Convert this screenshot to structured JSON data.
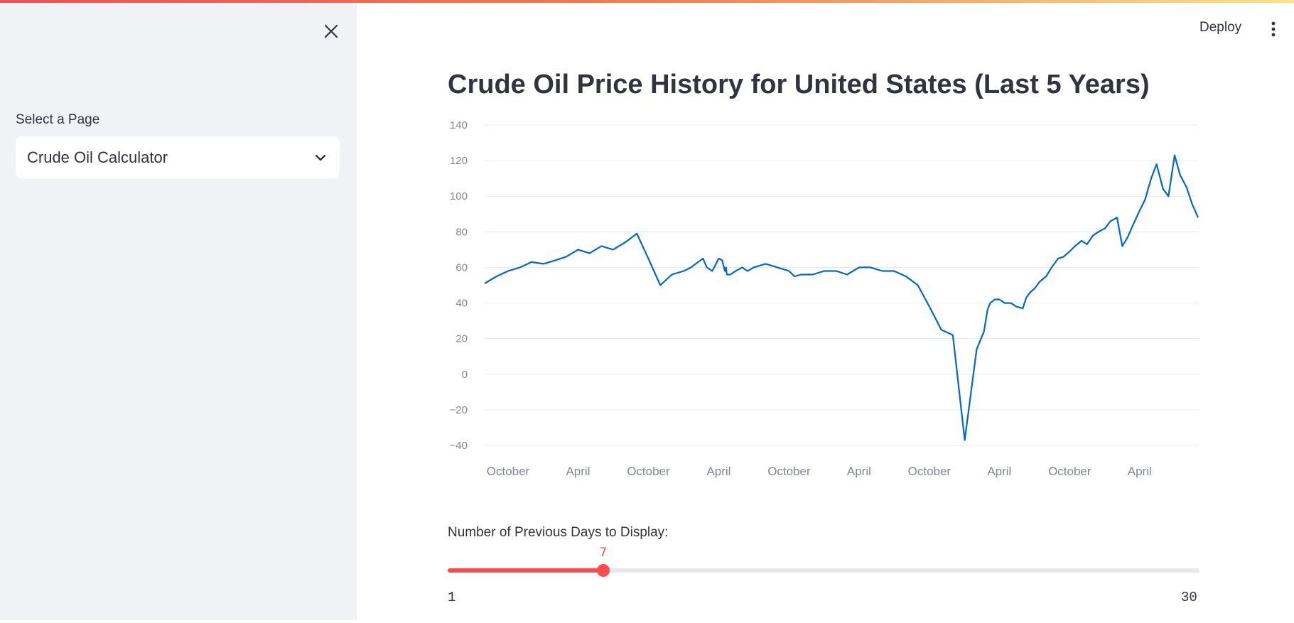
{
  "sidebar": {
    "select_label": "Select a Page",
    "selected_page": "Crude Oil Calculator"
  },
  "header": {
    "deploy_label": "Deploy"
  },
  "main": {
    "title": "Crude Oil Price History for United States (Last 5 Years)"
  },
  "slider": {
    "label": "Number of Previous Days to Display:",
    "min": 1,
    "max": 30,
    "value": 7,
    "min_label": "1",
    "max_label": "30",
    "value_label": "7",
    "accent": "#ff4b4b"
  },
  "chart_data": {
    "type": "line",
    "title": "",
    "xlabel": "",
    "ylabel": "",
    "ylim": [
      -40,
      140
    ],
    "yticks": [
      140,
      120,
      100,
      80,
      60,
      40,
      20,
      0,
      -20,
      -40
    ],
    "ytick_labels": [
      "140",
      "120",
      "100",
      "80",
      "60",
      "40",
      "20",
      "0",
      "−20",
      "−40"
    ],
    "xlim": [
      "2018-08-01",
      "2023-08-31"
    ],
    "xticks": [
      {
        "date": "2018-10-01",
        "label": "October"
      },
      {
        "date": "2019-04-01",
        "label": "April"
      },
      {
        "date": "2019-10-01",
        "label": "October"
      },
      {
        "date": "2020-04-01",
        "label": "April"
      },
      {
        "date": "2020-10-01",
        "label": "October"
      },
      {
        "date": "2021-04-01",
        "label": "April"
      },
      {
        "date": "2021-10-01",
        "label": "October"
      },
      {
        "date": "2022-04-01",
        "label": "April"
      },
      {
        "date": "2022-10-01",
        "label": "October"
      },
      {
        "date": "2023-04-01",
        "label": "April"
      }
    ],
    "grid": true,
    "line_color": "#0068c9",
    "series": [
      {
        "x": [
          "2018-08-01",
          "2018-09-01",
          "2018-10-01",
          "2018-11-01",
          "2018-12-01",
          "2019-01-01",
          "2019-02-01",
          "2019-03-01",
          "2019-04-01",
          "2019-05-01",
          "2019-06-01",
          "2019-07-01",
          "2019-08-01",
          "2019-09-01",
          "2019-10-01",
          "2019-11-01",
          "2019-12-01",
          "2020-01-01",
          "2020-01-20",
          "2020-02-01",
          "2020-02-20",
          "2020-03-01",
          "2020-03-15",
          "2020-03-25",
          "2020-04-01",
          "2020-04-10",
          "2020-04-17",
          "2020-04-20",
          "2020-04-22",
          "2020-05-01",
          "2020-05-15",
          "2020-06-01",
          "2020-06-15",
          "2020-07-01",
          "2020-08-01",
          "2020-09-01",
          "2020-10-01",
          "2020-10-15",
          "2020-11-01",
          "2020-12-01",
          "2021-01-01",
          "2021-02-01",
          "2021-03-01",
          "2021-04-01",
          "2021-05-01",
          "2021-06-01",
          "2021-07-01",
          "2021-08-01",
          "2021-09-01",
          "2021-10-01",
          "2021-11-01",
          "2021-12-01",
          "2022-01-01",
          "2022-02-01",
          "2022-02-20",
          "2022-03-01",
          "2022-03-08",
          "2022-03-15",
          "2022-03-20",
          "2022-04-01",
          "2022-04-15",
          "2022-05-01",
          "2022-05-15",
          "2022-06-01",
          "2022-06-10",
          "2022-06-20",
          "2022-07-01",
          "2022-07-15",
          "2022-08-01",
          "2022-08-15",
          "2022-09-01",
          "2022-09-15",
          "2022-10-01",
          "2022-10-15",
          "2022-11-01",
          "2022-11-15",
          "2022-12-01",
          "2022-12-15",
          "2023-01-01",
          "2023-01-15",
          "2023-02-01",
          "2023-02-15",
          "2023-03-01",
          "2023-03-15",
          "2023-04-01",
          "2023-04-15",
          "2023-05-01",
          "2023-05-15",
          "2023-06-01",
          "2023-06-15",
          "2023-07-01",
          "2023-07-15",
          "2023-08-01",
          "2023-08-15",
          "2023-08-31"
        ],
        "y": [
          51,
          55,
          58,
          60,
          63,
          62,
          64,
          66,
          70,
          68,
          72,
          70,
          74,
          79,
          65,
          50,
          56,
          58,
          60,
          62,
          65,
          60,
          58,
          62,
          65,
          64,
          58,
          60,
          56,
          56,
          58,
          60,
          58,
          60,
          62,
          60,
          58,
          55,
          56,
          56,
          58,
          58,
          56,
          60,
          60,
          58,
          58,
          55,
          50,
          38,
          25,
          22,
          -37,
          14,
          24,
          36,
          40,
          41,
          42,
          42,
          40,
          40,
          38,
          37,
          43,
          46,
          48,
          52,
          55,
          60,
          65,
          66,
          69,
          72,
          75,
          73,
          78,
          80,
          82,
          86,
          88,
          72,
          77,
          84,
          92,
          98,
          110,
          118,
          104,
          100,
          123,
          112,
          105,
          96,
          88
        ]
      }
    ]
  }
}
